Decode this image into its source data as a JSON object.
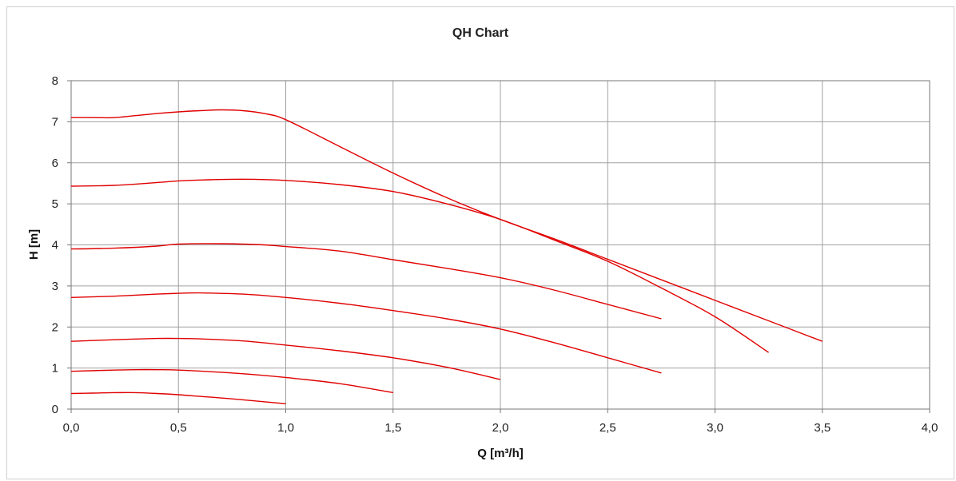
{
  "chart_data": {
    "type": "line",
    "title": "QH Chart",
    "xlabel": "Q [m³/h]",
    "ylabel": "H [m]",
    "xlim": [
      0,
      4
    ],
    "ylim": [
      0,
      8
    ],
    "x_ticks": [
      "0,0",
      "0,5",
      "1,0",
      "1,5",
      "2,0",
      "2,5",
      "3,0",
      "3,5",
      "4,0"
    ],
    "y_ticks": [
      "0",
      "1",
      "2",
      "3",
      "4",
      "5",
      "6",
      "7",
      "8"
    ],
    "grid": true,
    "line_color": "#e00000",
    "series": [
      {
        "x": [
          0,
          0.1,
          0.2,
          0.3,
          0.4,
          0.5,
          0.6,
          0.7,
          0.8,
          0.9,
          1.0,
          1.25,
          1.5,
          1.75,
          2.0,
          2.25,
          2.5,
          2.75,
          3.0,
          3.25,
          3.5
        ],
        "values": [
          7.1,
          7.1,
          7.1,
          7.15,
          7.2,
          7.24,
          7.27,
          7.29,
          7.27,
          7.2,
          7.05,
          6.4,
          5.75,
          5.15,
          4.62,
          4.15,
          3.65,
          3.15,
          2.65,
          2.15,
          1.65
        ]
      },
      {
        "x": [
          0,
          0.2,
          0.4,
          0.5,
          0.6,
          0.8,
          1.0,
          1.25,
          1.5,
          1.75,
          2.0,
          2.25,
          2.5,
          2.75,
          3.0,
          3.25
        ],
        "values": [
          5.43,
          5.45,
          5.52,
          5.56,
          5.58,
          5.6,
          5.57,
          5.47,
          5.3,
          5.0,
          4.62,
          4.12,
          3.6,
          2.95,
          2.25,
          1.38
        ]
      },
      {
        "x": [
          0,
          0.2,
          0.4,
          0.5,
          0.7,
          0.9,
          1.0,
          1.25,
          1.5,
          1.75,
          2.0,
          2.25,
          2.5,
          2.75
        ],
        "values": [
          3.9,
          3.92,
          3.97,
          4.02,
          4.03,
          4.0,
          3.96,
          3.85,
          3.64,
          3.43,
          3.2,
          2.9,
          2.55,
          2.2
        ]
      },
      {
        "x": [
          0,
          0.2,
          0.4,
          0.5,
          0.6,
          0.8,
          1.0,
          1.25,
          1.5,
          1.75,
          2.0,
          2.25,
          2.5,
          2.75
        ],
        "values": [
          2.72,
          2.75,
          2.8,
          2.82,
          2.83,
          2.8,
          2.72,
          2.58,
          2.4,
          2.2,
          1.95,
          1.62,
          1.25,
          0.88
        ]
      },
      {
        "x": [
          0,
          0.2,
          0.4,
          0.5,
          0.6,
          0.8,
          1.0,
          1.25,
          1.5,
          1.75,
          2.0
        ],
        "values": [
          1.65,
          1.69,
          1.72,
          1.72,
          1.71,
          1.66,
          1.56,
          1.42,
          1.25,
          1.02,
          0.72
        ]
      },
      {
        "x": [
          0,
          0.2,
          0.3,
          0.4,
          0.5,
          0.75,
          1.0,
          1.25,
          1.5
        ],
        "values": [
          0.92,
          0.95,
          0.96,
          0.96,
          0.95,
          0.88,
          0.77,
          0.62,
          0.4
        ]
      },
      {
        "x": [
          0,
          0.1,
          0.2,
          0.3,
          0.4,
          0.5,
          0.6,
          0.75,
          1.0
        ],
        "values": [
          0.38,
          0.39,
          0.4,
          0.4,
          0.38,
          0.35,
          0.31,
          0.25,
          0.13
        ]
      }
    ]
  }
}
